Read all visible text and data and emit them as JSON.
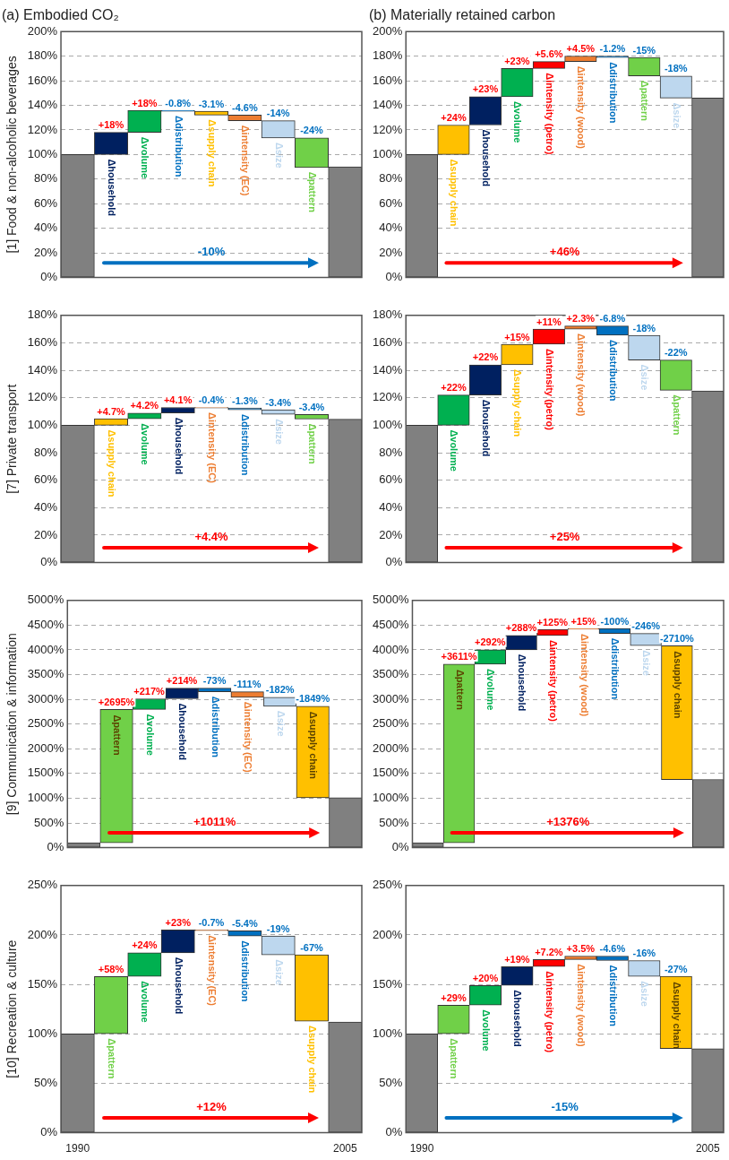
{
  "chart_data": [
    {
      "type": "bar",
      "title": "(a) Embodied CO₂",
      "ylabel": "[1] Food & non-alcoholic beverages",
      "categories": [
        null,
        "Δhousehold",
        "Δvolume",
        "Δdistribution",
        "Δsupply chain",
        "Δintensity (EC)",
        "Δsize",
        "Δpattern",
        null
      ],
      "values": [
        100,
        18,
        18,
        -0.8,
        -3.1,
        -4.6,
        -14,
        -24,
        90
      ],
      "base": [
        0,
        100,
        118,
        136,
        135.2,
        132.1,
        127.5,
        113.5,
        0
      ],
      "colors": [
        "#808080",
        "#002060",
        "#00b050",
        "#0070c0",
        "#ffc000",
        "#ed7d31",
        "#bdd7ee",
        "#70d048",
        "#808080"
      ],
      "value_labels": [
        null,
        "+18%",
        "+18%",
        "-0.8%",
        "-3.1%",
        "-4.6%",
        "-14%",
        "-24%",
        null
      ],
      "ylim": [
        0,
        200
      ],
      "yticks": [
        {
          "value": 0,
          "label": "0%"
        },
        {
          "value": 20,
          "label": "20%"
        },
        {
          "value": 40,
          "label": "40%"
        },
        {
          "value": 60,
          "label": "60%"
        },
        {
          "value": 80,
          "label": "80%"
        },
        {
          "value": 100,
          "label": "100%"
        },
        {
          "value": 120,
          "label": "120%"
        },
        {
          "value": 140,
          "label": "140%"
        },
        {
          "value": 160,
          "label": "160%"
        },
        {
          "value": 180,
          "label": "180%"
        },
        {
          "value": 200,
          "label": "200%"
        }
      ],
      "grid": "y",
      "annotations": [
        "-10%"
      ]
    },
    {
      "type": "bar",
      "title": "(b) Materially retained carbon",
      "categories": [
        null,
        "Δsupply chain",
        "Δhousehold",
        "Δvolume",
        "Δintensity (petro)",
        "Δintensity (wood)",
        "Δdistribution",
        "Δpattern",
        "Δsize",
        null
      ],
      "values": [
        100,
        24,
        23,
        23,
        5.6,
        4.5,
        -1.2,
        -15,
        -18,
        146
      ],
      "base": [
        0,
        100,
        124,
        147,
        170,
        175.6,
        180.1,
        178.9,
        163.9,
        0
      ],
      "colors": [
        "#808080",
        "#ffc000",
        "#002060",
        "#00b050",
        "#ff0000",
        "#ed7d31",
        "#0070c0",
        "#70d048",
        "#bdd7ee",
        "#808080"
      ],
      "value_labels": [
        null,
        "+24%",
        "+23%",
        "+23%",
        "+5.6%",
        "+4.5%",
        "-1.2%",
        "-15%",
        "-18%",
        null
      ],
      "ylim": [
        0,
        200
      ],
      "yticks": [
        {
          "value": 0,
          "label": "0%"
        },
        {
          "value": 20,
          "label": "20%"
        },
        {
          "value": 40,
          "label": "40%"
        },
        {
          "value": 60,
          "label": "60%"
        },
        {
          "value": 80,
          "label": "80%"
        },
        {
          "value": 100,
          "label": "100%"
        },
        {
          "value": 120,
          "label": "120%"
        },
        {
          "value": 140,
          "label": "140%"
        },
        {
          "value": 160,
          "label": "160%"
        },
        {
          "value": 180,
          "label": "180%"
        },
        {
          "value": 200,
          "label": "200%"
        }
      ],
      "grid": "y",
      "annotations": [
        "+46%"
      ]
    },
    {
      "type": "bar",
      "ylabel": "[7] Private transport",
      "categories": [
        null,
        "Δsupply chain",
        "Δvolume",
        "Δhousehold",
        "Δintensity (EC)",
        "Δdistribution",
        "Δsize",
        "Δpattern",
        null
      ],
      "values": [
        100,
        4.7,
        4.2,
        4.1,
        -0.4,
        -1.3,
        -3.4,
        -3.4,
        104.4
      ],
      "base": [
        0,
        100,
        104.7,
        108.9,
        113,
        112.6,
        111.3,
        107.9,
        0
      ],
      "colors": [
        "#808080",
        "#ffc000",
        "#00b050",
        "#002060",
        "#ed7d31",
        "#0070c0",
        "#bdd7ee",
        "#70d048",
        "#808080"
      ],
      "value_labels": [
        null,
        "+4.7%",
        "+4.2%",
        "+4.1%",
        "-0.4%",
        "-1.3%",
        "-3.4%",
        "-3.4%",
        null
      ],
      "ylim": [
        0,
        180
      ],
      "yticks": [
        {
          "value": 0,
          "label": "0%"
        },
        {
          "value": 20,
          "label": "20%"
        },
        {
          "value": 40,
          "label": "40%"
        },
        {
          "value": 60,
          "label": "60%"
        },
        {
          "value": 80,
          "label": "80%"
        },
        {
          "value": 100,
          "label": "100%"
        },
        {
          "value": 120,
          "label": "120%"
        },
        {
          "value": 140,
          "label": "140%"
        },
        {
          "value": 160,
          "label": "160%"
        },
        {
          "value": 180,
          "label": "180%"
        }
      ],
      "grid": "y",
      "annotations": [
        "+4.4%"
      ]
    },
    {
      "type": "bar",
      "categories": [
        null,
        "Δvolume",
        "Δhousehold",
        "Δsupply chain",
        "Δintensity (petro)",
        "Δintensity (wood)",
        "Δdistribution",
        "Δsize",
        "Δpattern",
        null
      ],
      "values": [
        100,
        22,
        22,
        15,
        11,
        2.3,
        -6.8,
        -18,
        -22,
        125
      ],
      "base": [
        0,
        100,
        122,
        144,
        159,
        170,
        172.3,
        165.5,
        147.5,
        0
      ],
      "colors": [
        "#808080",
        "#00b050",
        "#002060",
        "#ffc000",
        "#ff0000",
        "#ed7d31",
        "#0070c0",
        "#bdd7ee",
        "#70d048",
        "#808080"
      ],
      "value_labels": [
        null,
        "+22%",
        "+22%",
        "+15%",
        "+11%",
        "+2.3%",
        "-6.8%",
        "-18%",
        "-22%",
        null
      ],
      "ylim": [
        0,
        180
      ],
      "yticks": [
        {
          "value": 0,
          "label": "0%"
        },
        {
          "value": 20,
          "label": "20%"
        },
        {
          "value": 40,
          "label": "40%"
        },
        {
          "value": 60,
          "label": "60%"
        },
        {
          "value": 80,
          "label": "80%"
        },
        {
          "value": 100,
          "label": "100%"
        },
        {
          "value": 120,
          "label": "120%"
        },
        {
          "value": 140,
          "label": "140%"
        },
        {
          "value": 160,
          "label": "160%"
        },
        {
          "value": 180,
          "label": "180%"
        }
      ],
      "grid": "y",
      "annotations": [
        "+25%"
      ]
    },
    {
      "type": "bar",
      "ylabel": "[9] Communication & information",
      "categories": [
        null,
        "Δpattern",
        "Δvolume",
        "Δhousehold",
        "Δdistribution",
        "Δintensity (EC)",
        "Δsize",
        "Δsupply chain",
        null
      ],
      "values": [
        100,
        2695,
        217,
        214,
        -73,
        -111,
        -182,
        -1849,
        1010
      ],
      "base": [
        0,
        100,
        2795,
        3012,
        3226,
        3153,
        3042,
        2860,
        0
      ],
      "colors": [
        "#808080",
        "#70d048",
        "#00b050",
        "#002060",
        "#0070c0",
        "#ed7d31",
        "#bdd7ee",
        "#ffc000",
        "#808080"
      ],
      "value_labels": [
        null,
        "+2695%",
        "+217%",
        "+214%",
        "-73%",
        "-111%",
        "-182%",
        "-1849%",
        null
      ],
      "ylim": [
        0,
        5000
      ],
      "yticks": [
        {
          "value": 0,
          "label": "0%"
        },
        {
          "value": 500,
          "label": "500%"
        },
        {
          "value": 1000,
          "label": "1000%"
        },
        {
          "value": 1500,
          "label": "1500%"
        },
        {
          "value": 2000,
          "label": "2000%"
        },
        {
          "value": 2500,
          "label": "2500%"
        },
        {
          "value": 3000,
          "label": "3000%"
        },
        {
          "value": 3500,
          "label": "3500%"
        },
        {
          "value": 4000,
          "label": "4000%"
        },
        {
          "value": 4500,
          "label": "4500%"
        },
        {
          "value": 5000,
          "label": "5000%"
        }
      ],
      "grid": "y",
      "annotations": [
        "+1011%"
      ]
    },
    {
      "type": "bar",
      "categories": [
        null,
        "Δpattern",
        "Δvolume",
        "Δhousehold",
        "Δintensity (petro)",
        "Δintensity (wood)",
        "Δdistribution",
        "Δsize",
        "Δsupply chain",
        null
      ],
      "values": [
        100,
        3611,
        292,
        288,
        125,
        15,
        -100,
        -246,
        -2710,
        1380
      ],
      "base": [
        0,
        100,
        3711,
        4003,
        4291,
        4416,
        4431,
        4331,
        4085,
        0
      ],
      "colors": [
        "#808080",
        "#70d048",
        "#00b050",
        "#002060",
        "#ff0000",
        "#ed7d31",
        "#0070c0",
        "#bdd7ee",
        "#ffc000",
        "#808080"
      ],
      "value_labels": [
        null,
        "+3611%",
        "+292%",
        "+288%",
        "+125%",
        "+15%",
        "-100%",
        "-246%",
        "-2710%",
        null
      ],
      "ylim": [
        0,
        5000
      ],
      "yticks": [
        {
          "value": 0,
          "label": "0%"
        },
        {
          "value": 500,
          "label": "500%"
        },
        {
          "value": 1000,
          "label": "1000%"
        },
        {
          "value": 1500,
          "label": "1500%"
        },
        {
          "value": 2000,
          "label": "2000%"
        },
        {
          "value": 2500,
          "label": "2500%"
        },
        {
          "value": 3000,
          "label": "3000%"
        },
        {
          "value": 3500,
          "label": "3500%"
        },
        {
          "value": 4000,
          "label": "4000%"
        },
        {
          "value": 4500,
          "label": "4500%"
        },
        {
          "value": 5000,
          "label": "5000%"
        }
      ],
      "grid": "y",
      "annotations": [
        "+1376%"
      ]
    },
    {
      "type": "bar",
      "ylabel": "[10] Recreation & culture",
      "categories": [
        "1990",
        "Δpattern",
        "Δvolume",
        "Δhousehold",
        "Δintensity (EC)",
        "Δdistribution",
        "Δsize",
        "Δsupply chain",
        "2005"
      ],
      "values": [
        100,
        58,
        24,
        23,
        -0.7,
        -5.4,
        -19,
        -67,
        112
      ],
      "base": [
        0,
        100,
        158,
        182,
        205,
        204.3,
        198.9,
        179.9,
        0
      ],
      "colors": [
        "#808080",
        "#70d048",
        "#00b050",
        "#002060",
        "#ed7d31",
        "#0070c0",
        "#bdd7ee",
        "#ffc000",
        "#808080"
      ],
      "value_labels": [
        null,
        "+58%",
        "+24%",
        "+23%",
        "-0.7%",
        "-5.4%",
        "-19%",
        "-67%",
        null
      ],
      "ylim": [
        0,
        250
      ],
      "yticks": [
        {
          "value": 0,
          "label": "0%"
        },
        {
          "value": 50,
          "label": "50%"
        },
        {
          "value": 100,
          "label": "100%"
        },
        {
          "value": 150,
          "label": "150%"
        },
        {
          "value": 200,
          "label": "200%"
        },
        {
          "value": 250,
          "label": "250%"
        }
      ],
      "grid": "y",
      "annotations": [
        "+12%"
      ]
    },
    {
      "type": "bar",
      "categories": [
        "1990",
        "Δpattern",
        "Δvolume",
        "Δhousehold",
        "Δintensity (petro)",
        "Δintensity (wood)",
        "Δdistribution",
        "Δsize",
        "Δsupply chain",
        "2005"
      ],
      "values": [
        100,
        29,
        20,
        19,
        7.2,
        3.5,
        -4.6,
        -16,
        -73,
        85
      ],
      "base": [
        0,
        100,
        129,
        149,
        168,
        175.2,
        178.7,
        174.1,
        158.1,
        0
      ],
      "colors": [
        "#808080",
        "#70d048",
        "#00b050",
        "#002060",
        "#ff0000",
        "#ed7d31",
        "#0070c0",
        "#bdd7ee",
        "#ffc000",
        "#808080"
      ],
      "value_labels": [
        null,
        "+29%",
        "+20%",
        "+19%",
        "+7.2%",
        "+3.5%",
        "-4.6%",
        "-16%",
        null,
        null
      ],
      "ylim": [
        0,
        250
      ],
      "yticks": [
        {
          "value": 0,
          "label": "0%"
        },
        {
          "value": 50,
          "label": "50%"
        },
        {
          "value": 100,
          "label": "100%"
        },
        {
          "value": 150,
          "label": "150%"
        },
        {
          "value": 200,
          "label": "200%"
        },
        {
          "value": 250,
          "label": "250%"
        }
      ],
      "grid": "y",
      "annotations": [
        "-15%",
        {
          "text": "-27%",
          "x": "Δsupply chain",
          "y": 158.1
        }
      ]
    }
  ]
}
